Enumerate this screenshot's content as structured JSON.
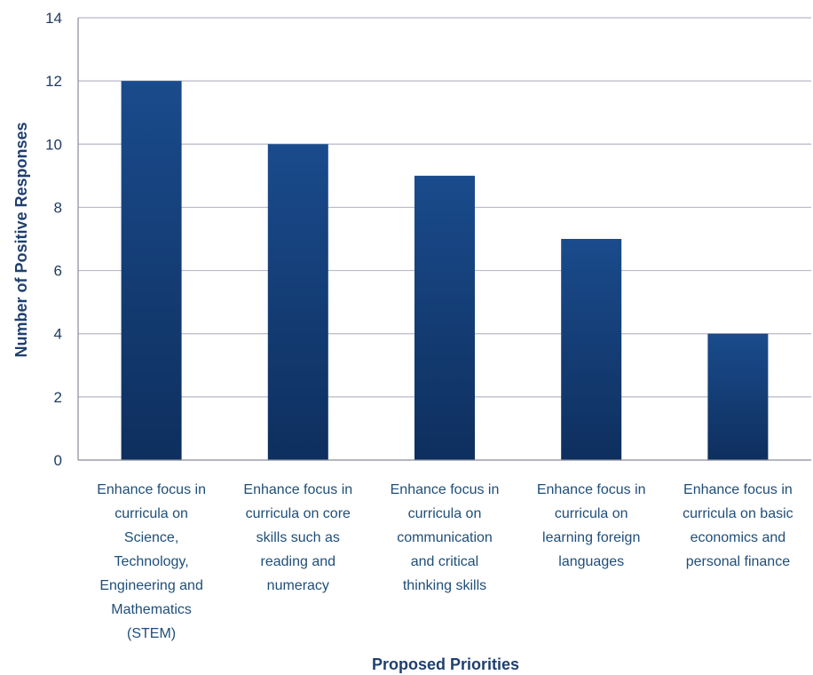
{
  "chart_data": {
    "type": "bar",
    "title": "",
    "xlabel": "Proposed Priorities",
    "ylabel": "Number of Positive Responses",
    "ylim": [
      0,
      14
    ],
    "yticks": [
      0,
      2,
      4,
      6,
      8,
      10,
      12,
      14
    ],
    "grid": true,
    "categories": [
      "Enhance focus in curricula on Science, Technology, Engineering and Mathematics (STEM)",
      "Enhance focus in curricula on core skills such as reading and numeracy",
      "Enhance focus in curricula on communication and critical thinking skills",
      "Enhance focus in curricula on learning foreign languages",
      "Enhance focus in curricula on basic economics and personal finance"
    ],
    "category_lines": [
      [
        "Enhance focus in",
        "curricula on",
        "Science,",
        "Technology,",
        "Engineering and",
        "Mathematics",
        "(STEM)"
      ],
      [
        "Enhance focus in",
        "curricula on core",
        "skills such as",
        "reading and",
        "numeracy"
      ],
      [
        "Enhance focus in",
        "curricula on",
        "communication",
        "and critical",
        "thinking skills"
      ],
      [
        "Enhance focus in",
        "curricula on",
        "learning foreign",
        "languages"
      ],
      [
        "Enhance focus in",
        "curricula on basic",
        "economics and",
        "personal finance"
      ]
    ],
    "values": [
      12,
      10,
      9,
      7,
      4
    ],
    "colors": {
      "bar_top": "#1a4b8c",
      "bar_bottom": "#0e2f5e",
      "grid": "#b9b9c9",
      "axis": "#8a8a9a"
    }
  }
}
